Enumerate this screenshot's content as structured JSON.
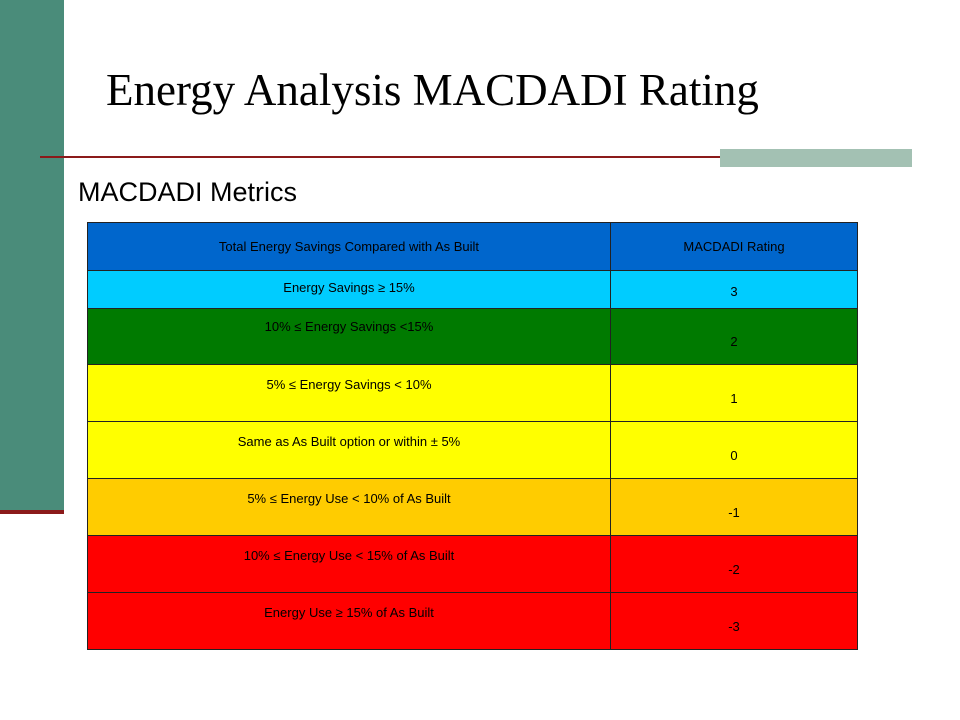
{
  "slide": {
    "title": "Energy Analysis MACDADI Rating",
    "subtitle": "MACDADI Metrics"
  },
  "colors": {
    "side_bar": "#4a8c7a",
    "rule": "#8b1a1a",
    "accent_block": "#a3c1b3"
  },
  "table": {
    "headers": [
      "Total Energy Savings Compared with As Built",
      "MACDADI Rating"
    ],
    "header_color": "#0066cc",
    "rows": [
      {
        "condition": "Energy Savings ≥ 15%",
        "rating": "3",
        "color": "#00ccff"
      },
      {
        "condition": "10% ≤ Energy Savings <15%",
        "rating": "2",
        "color": "#007a00"
      },
      {
        "condition": "5% ≤ Energy Savings < 10%",
        "rating": "1",
        "color": "#ffff00"
      },
      {
        "condition": "Same as As Built option or within ± 5%",
        "rating": "0",
        "color": "#ffff00"
      },
      {
        "condition": "5% ≤ Energy Use < 10% of As Built",
        "rating": "-1",
        "color": "#ffcc00"
      },
      {
        "condition": "10% ≤ Energy Use < 15% of As Built",
        "rating": "-2",
        "color": "#ff0000"
      },
      {
        "condition": "Energy Use ≥ 15% of As Built",
        "rating": "-3",
        "color": "#ff0000"
      }
    ]
  }
}
